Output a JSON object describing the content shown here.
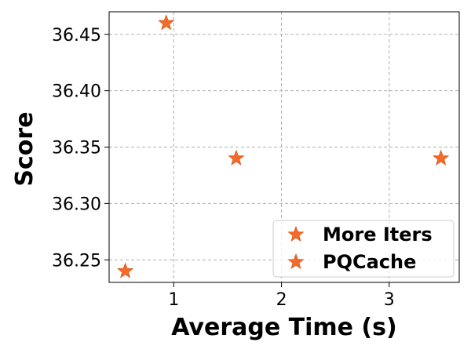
{
  "chart_data": {
    "type": "scatter",
    "xlabel": "Average Time (s)",
    "ylabel": "Score",
    "xlim": [
      0.4,
      3.65
    ],
    "ylim": [
      36.23,
      36.47
    ],
    "x_ticks": [
      1,
      2,
      3
    ],
    "y_ticks": [
      36.25,
      36.3,
      36.35,
      36.4,
      36.45
    ],
    "x_tick_labels": [
      "1",
      "2",
      "3"
    ],
    "y_tick_labels": [
      "36.25",
      "36.30",
      "36.35",
      "36.40",
      "36.45"
    ],
    "grid": true,
    "legend_position": "bottom-right",
    "marker": "star",
    "series": [
      {
        "name": "More Iters",
        "color": "#f26b2a",
        "points": [
          {
            "x": 0.93,
            "y": 36.46
          },
          {
            "x": 1.58,
            "y": 36.34
          },
          {
            "x": 3.48,
            "y": 36.34
          }
        ]
      },
      {
        "name": "PQCache",
        "color": "#f26b2a",
        "points": [
          {
            "x": 0.55,
            "y": 36.24
          }
        ]
      }
    ]
  }
}
